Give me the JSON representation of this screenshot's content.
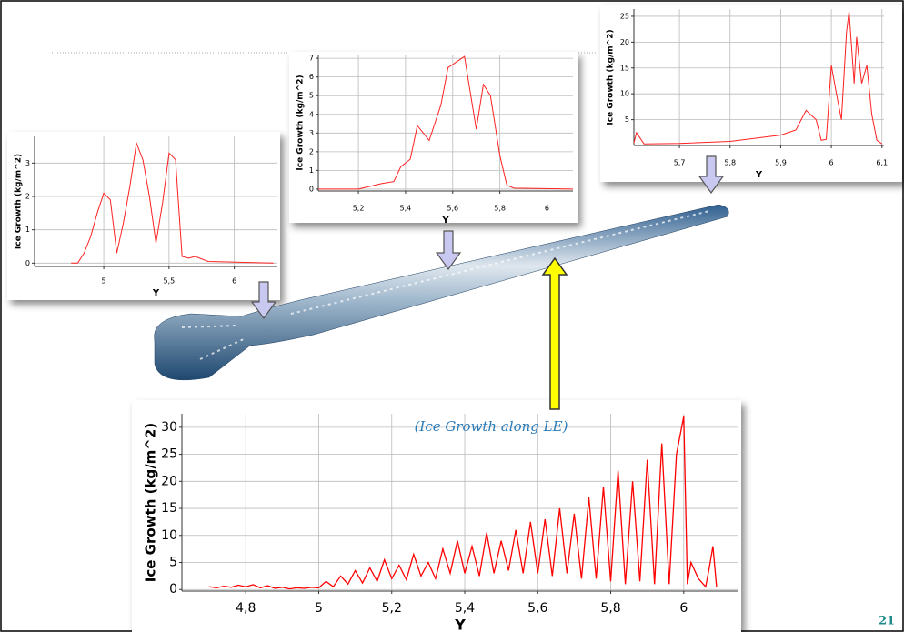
{
  "chart_data": [
    {
      "type": "line",
      "y_label": "Ice Growth  (kg/m^2)",
      "x_label": "Y",
      "color": "#ff2020",
      "x": [
        4.75,
        4.8,
        4.85,
        4.9,
        4.95,
        5.0,
        5.05,
        5.1,
        5.15,
        5.2,
        5.25,
        5.3,
        5.35,
        5.4,
        5.45,
        5.5,
        5.55,
        5.6,
        5.65,
        5.7,
        5.8,
        6.3
      ],
      "values": [
        0,
        0,
        0.3,
        0.8,
        1.5,
        2.1,
        1.9,
        0.3,
        1.2,
        2.3,
        3.6,
        3.1,
        2.0,
        0.6,
        1.8,
        3.3,
        3.1,
        0.2,
        0.15,
        0.2,
        0.05,
        0
      ],
      "xlim": [
        4.47,
        6.33
      ],
      "ylim": [
        -0.1,
        3.8
      ],
      "xticks": [
        5,
        {
          "value": 5.5,
          "label": "5,5"
        },
        6
      ],
      "yticks": [
        0,
        1,
        2,
        3
      ],
      "grid": true
    },
    {
      "type": "line",
      "y_label": "Ice Growth  (kg/m^2)",
      "x_label": "Y",
      "color": "#ff2020",
      "x": [
        5.03,
        5.15,
        5.2,
        5.3,
        5.35,
        5.38,
        5.42,
        5.45,
        5.5,
        5.55,
        5.58,
        5.65,
        5.7,
        5.73,
        5.76,
        5.8,
        5.83,
        5.86,
        6.11
      ],
      "values": [
        0,
        0,
        0,
        0.3,
        0.4,
        1.2,
        1.6,
        3.4,
        2.6,
        4.5,
        6.5,
        7.1,
        3.2,
        5.6,
        5.0,
        1.8,
        0.2,
        0.05,
        0
      ],
      "xlim": [
        5.03,
        6.11
      ],
      "ylim": [
        -0.1,
        7.2
      ],
      "xticks": [
        {
          "value": 5.2,
          "label": "5,2"
        },
        {
          "value": 5.4,
          "label": "5,4"
        },
        {
          "value": 5.6,
          "label": "5,6"
        },
        {
          "value": 5.8,
          "label": "5,8"
        },
        6
      ],
      "yticks": [
        0,
        1,
        2,
        3,
        4,
        5,
        6,
        7
      ],
      "grid": true
    },
    {
      "type": "line",
      "y_label": "Ice Growth  (kg/m^2)",
      "x_label": "Y",
      "color": "#ff2020",
      "x": [
        5.61,
        5.615,
        5.63,
        5.7,
        5.8,
        5.9,
        5.93,
        5.95,
        5.97,
        5.98,
        5.99,
        6.0,
        6.01,
        6.02,
        6.03,
        6.035,
        6.045,
        6.05,
        6.06,
        6.07,
        6.08,
        6.09,
        6.1
      ],
      "values": [
        0.5,
        2.5,
        0.3,
        0.4,
        0.8,
        2,
        3,
        6.8,
        5,
        1,
        1.2,
        15.5,
        10,
        5,
        22,
        26,
        12,
        21,
        12,
        15.5,
        6,
        1,
        0.3
      ],
      "xlim": [
        5.61,
        6.104
      ],
      "ylim": [
        0,
        26.4
      ],
      "xticks": [
        {
          "value": 5.7,
          "label": "5,7"
        },
        {
          "value": 5.8,
          "label": "5,8"
        },
        {
          "value": 5.9,
          "label": "5,9"
        },
        6,
        {
          "value": 6.1,
          "label": "6,1"
        }
      ],
      "yticks": [
        5,
        10,
        15,
        20,
        25
      ],
      "grid": true
    },
    {
      "type": "line",
      "y_label": "Ice Growth  (kg/m^2)",
      "x_label": "Y",
      "color": "#ff0000",
      "annotation": "(Ice Growth along LE)",
      "x": [
        4.7,
        4.72,
        4.74,
        4.76,
        4.78,
        4.8,
        4.82,
        4.84,
        4.86,
        4.88,
        4.9,
        4.92,
        4.94,
        4.96,
        4.98,
        5.0,
        5.02,
        5.04,
        5.06,
        5.08,
        5.1,
        5.12,
        5.14,
        5.16,
        5.18,
        5.2,
        5.22,
        5.24,
        5.26,
        5.28,
        5.3,
        5.32,
        5.34,
        5.36,
        5.38,
        5.4,
        5.42,
        5.44,
        5.46,
        5.48,
        5.5,
        5.52,
        5.54,
        5.56,
        5.58,
        5.6,
        5.62,
        5.64,
        5.66,
        5.68,
        5.7,
        5.72,
        5.74,
        5.76,
        5.78,
        5.8,
        5.82,
        5.84,
        5.86,
        5.88,
        5.9,
        5.92,
        5.94,
        5.96,
        5.98,
        6.0,
        6.01,
        6.02,
        6.04,
        6.06,
        6.07,
        6.08,
        6.09
      ],
      "values": [
        0.5,
        0.3,
        0.6,
        0.4,
        0.8,
        0.5,
        0.9,
        0.3,
        0.7,
        0.2,
        0.4,
        0.1,
        0.3,
        0.2,
        0.4,
        0.3,
        1.5,
        0.5,
        2.5,
        1,
        3.5,
        1.2,
        4,
        1.5,
        5.5,
        2,
        4.5,
        1.8,
        6.5,
        2.5,
        5,
        2,
        7.5,
        3,
        9,
        3,
        8,
        2.5,
        10.5,
        3,
        9,
        3.5,
        11,
        3,
        12.5,
        3,
        13,
        2.5,
        15,
        3,
        14,
        2,
        17,
        2,
        19,
        1.5,
        22,
        1,
        20,
        1.5,
        24,
        1,
        27,
        1,
        25,
        32,
        1,
        5,
        2,
        0.5,
        4,
        8,
        0.5
      ],
      "xlim": [
        4.625,
        6.15
      ],
      "ylim": [
        -0.3,
        32.5
      ],
      "xticks": [
        {
          "value": 4.8,
          "label": "4,8"
        },
        5,
        {
          "value": 5.2,
          "label": "5,2"
        },
        {
          "value": 5.4,
          "label": "5,4"
        },
        {
          "value": 5.6,
          "label": "5,6"
        },
        {
          "value": 5.8,
          "label": "5,8"
        },
        6
      ],
      "yticks": [
        0,
        5,
        10,
        15,
        20,
        25,
        30
      ],
      "grid": true
    }
  ],
  "page_number": "21"
}
